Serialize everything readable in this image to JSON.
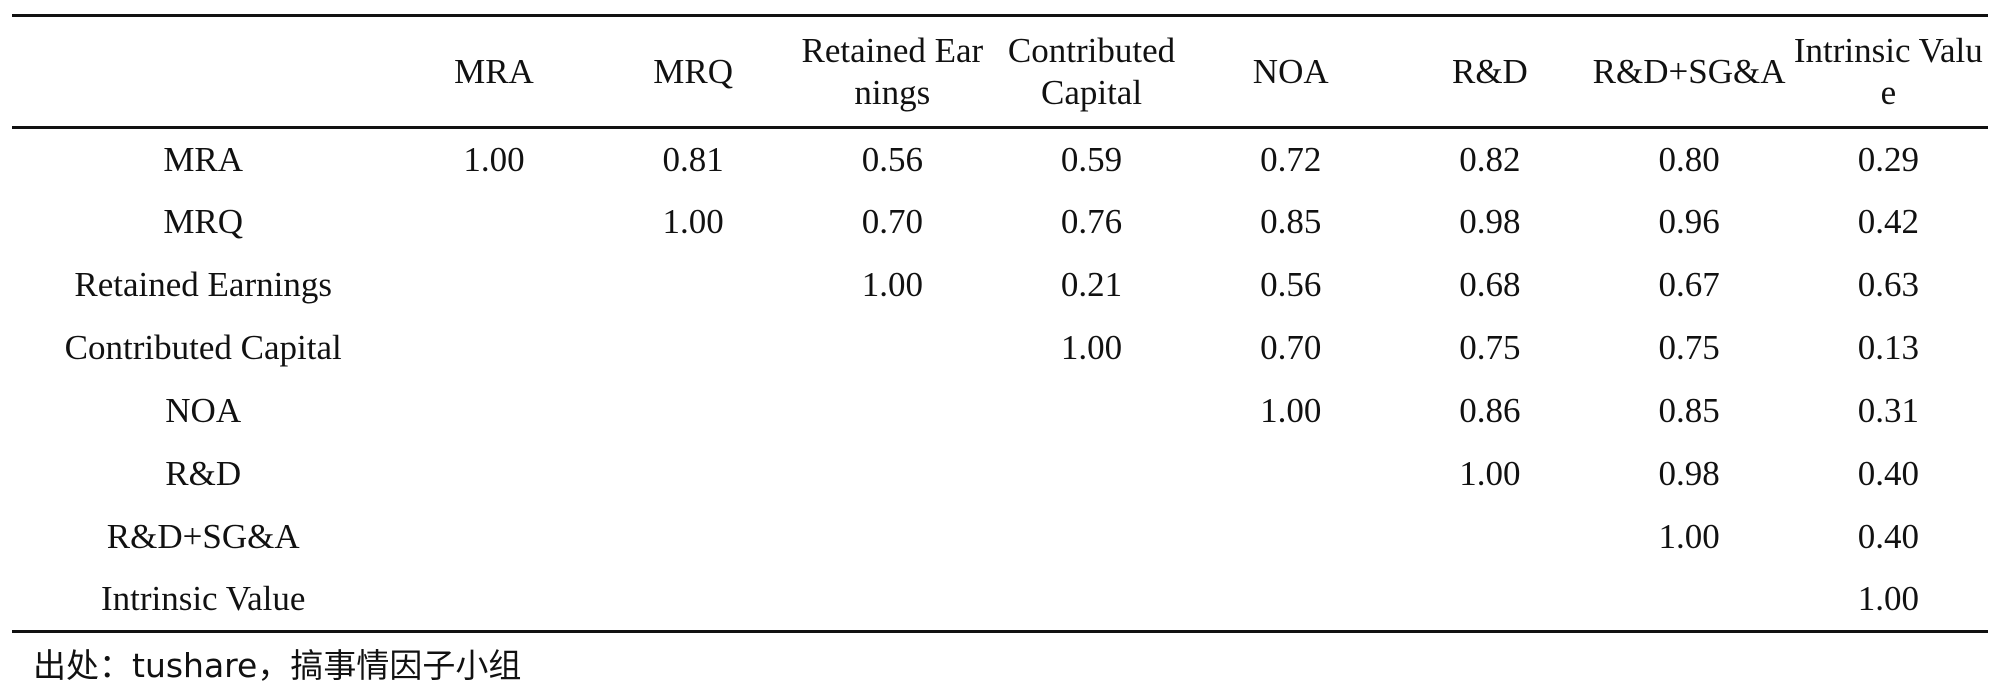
{
  "table": {
    "columns": [
      "",
      "MRA",
      "MRQ",
      "Retained Earnings",
      "Contributed Capital",
      "NOA",
      "R&D",
      "R&D+SG&A",
      "Intrinsic Value"
    ],
    "rows": [
      {
        "label": "MRA",
        "values": [
          "1.00",
          "0.81",
          "0.56",
          "0.59",
          "0.72",
          "0.82",
          "0.80",
          "0.29"
        ]
      },
      {
        "label": "MRQ",
        "values": [
          "",
          "1.00",
          "0.70",
          "0.76",
          "0.85",
          "0.98",
          "0.96",
          "0.42"
        ]
      },
      {
        "label": "Retained Earnings",
        "values": [
          "",
          "",
          "1.00",
          "0.21",
          "0.56",
          "0.68",
          "0.67",
          "0.63"
        ]
      },
      {
        "label": "Contributed Capital",
        "values": [
          "",
          "",
          "",
          "1.00",
          "0.70",
          "0.75",
          "0.75",
          "0.13"
        ]
      },
      {
        "label": "NOA",
        "values": [
          "",
          "",
          "",
          "",
          "1.00",
          "0.86",
          "0.85",
          "0.31"
        ]
      },
      {
        "label": "R&D",
        "values": [
          "",
          "",
          "",
          "",
          "",
          "1.00",
          "0.98",
          "0.40"
        ]
      },
      {
        "label": "R&D+SG&A",
        "values": [
          "",
          "",
          "",
          "",
          "",
          "",
          "1.00",
          "0.40"
        ]
      },
      {
        "label": "Intrinsic Value",
        "values": [
          "",
          "",
          "",
          "",
          "",
          "",
          "",
          "1.00"
        ]
      }
    ]
  },
  "source_note": "出处：tushare，搞事情因子小组"
}
